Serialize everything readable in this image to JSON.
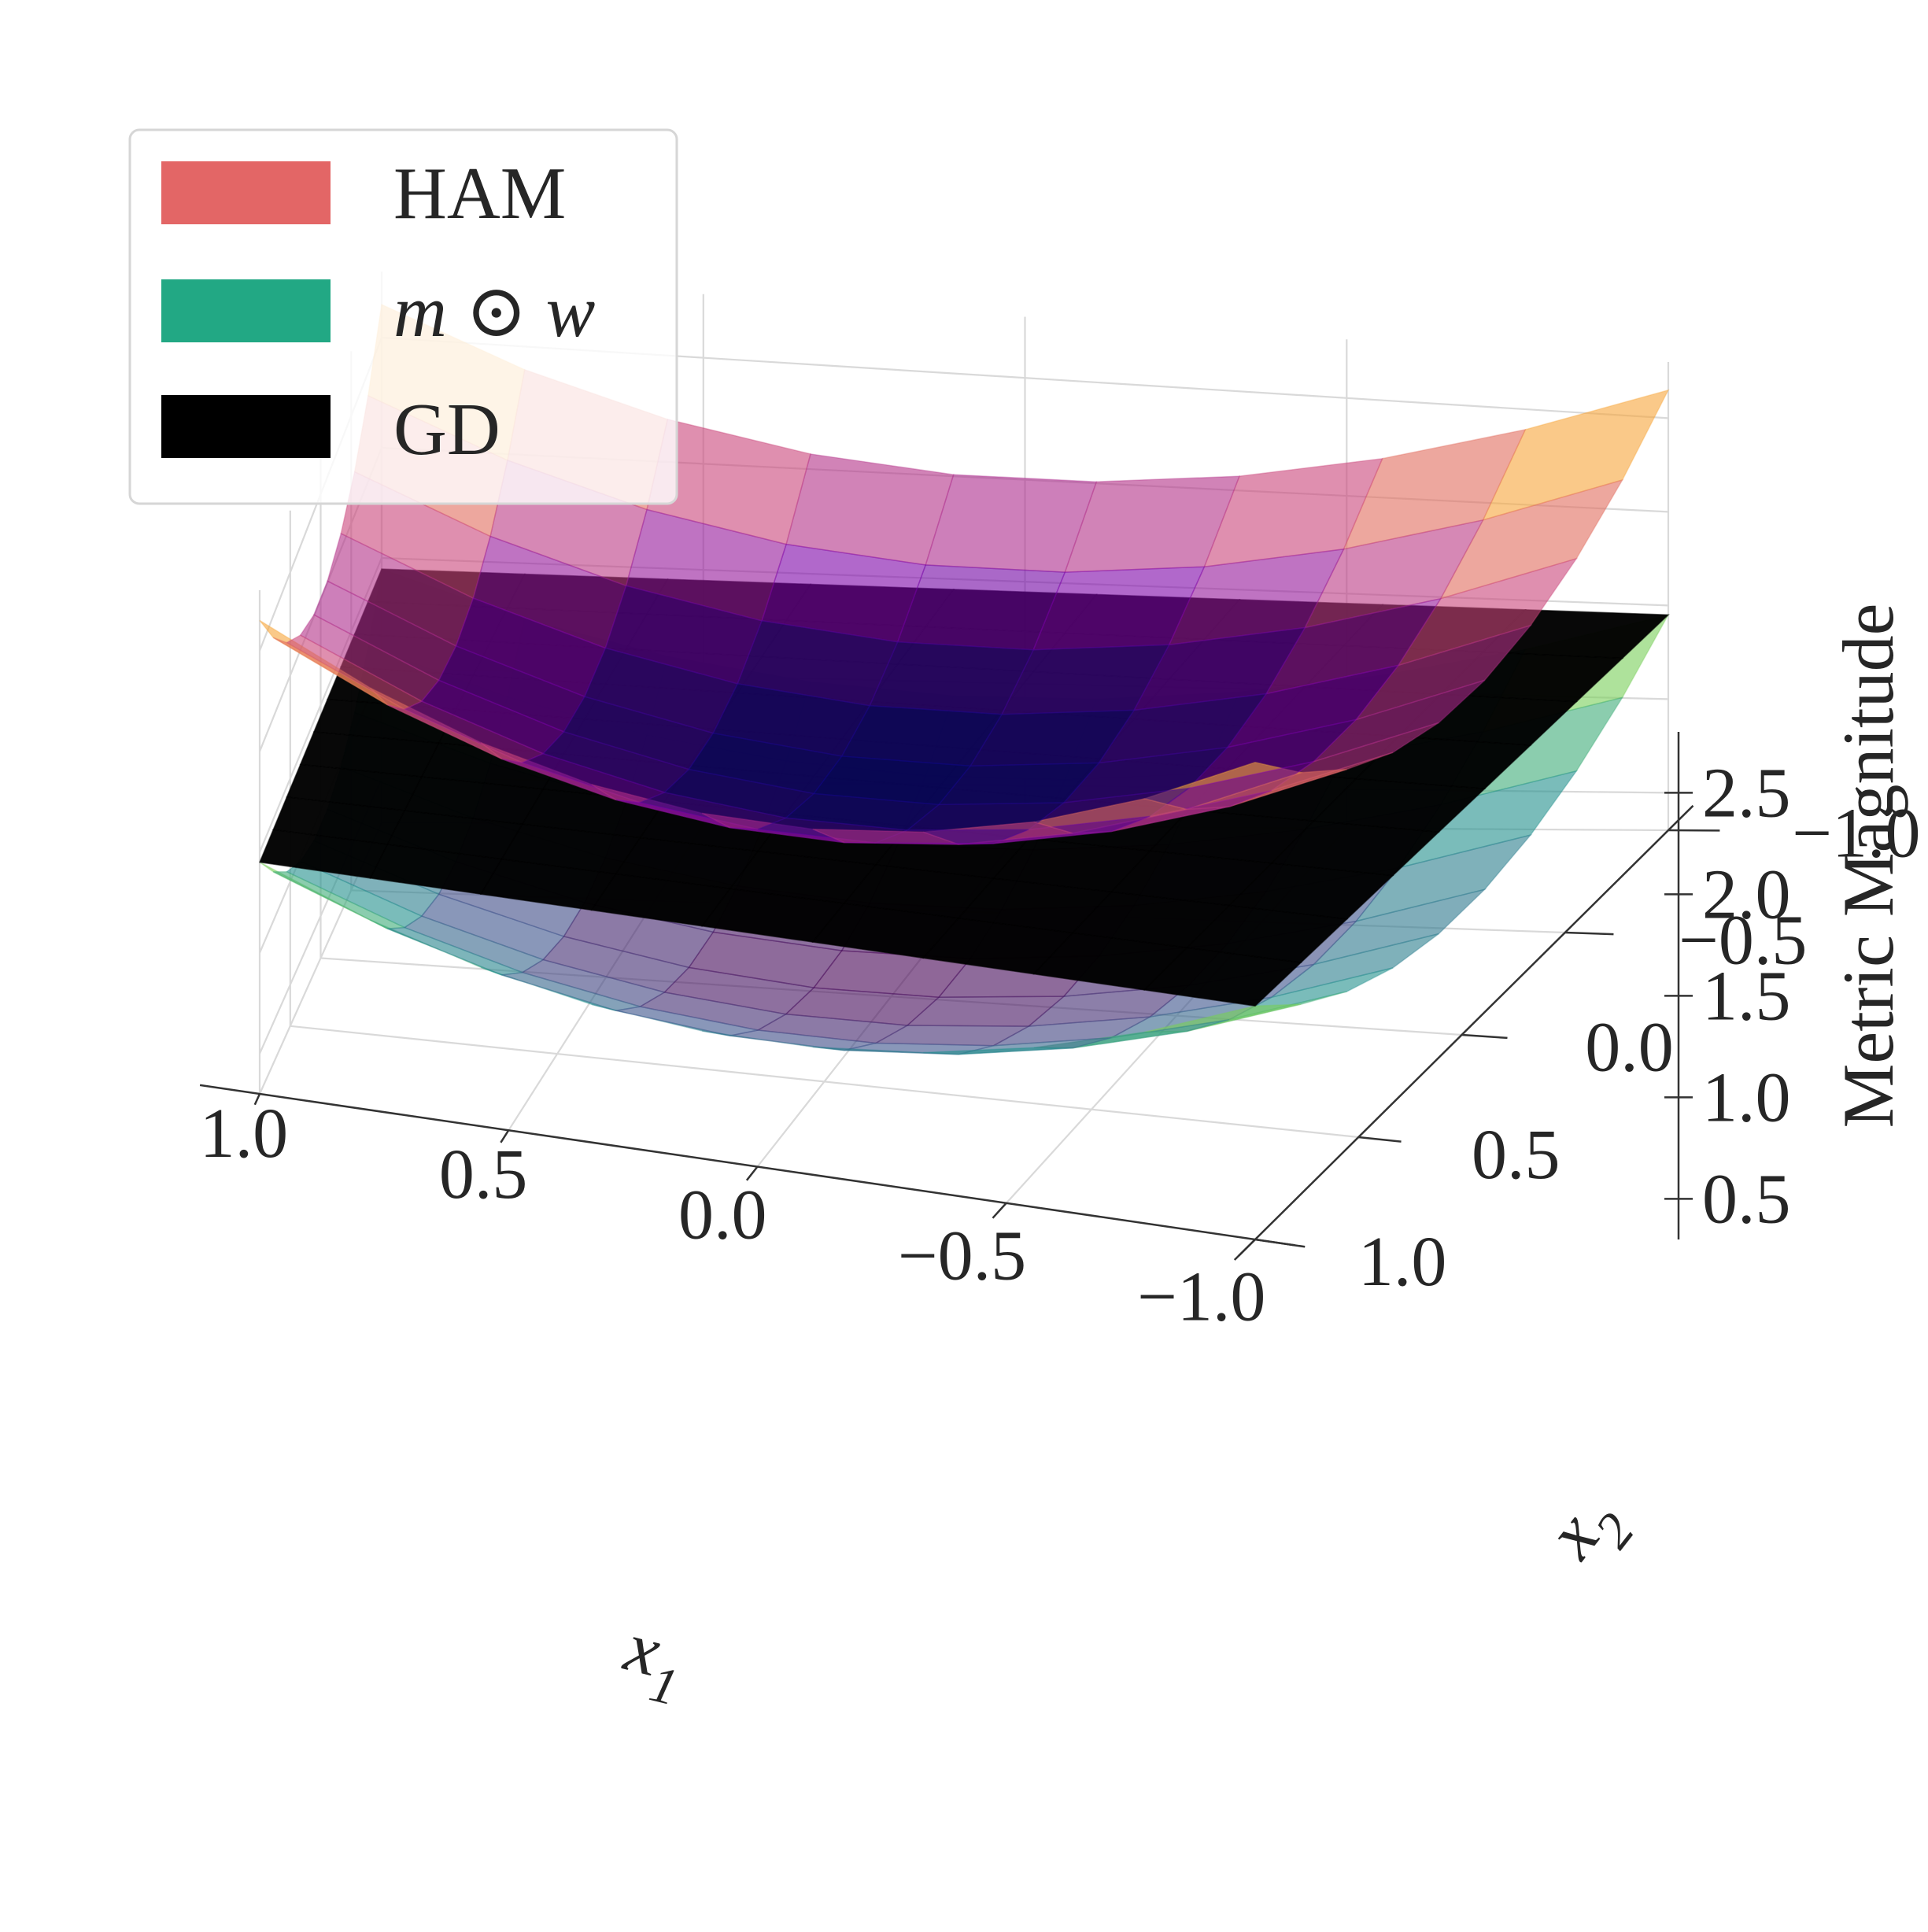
{
  "chart_data": {
    "type": "surface3d",
    "xlabel": "x",
    "xlabel_sub": "1",
    "ylabel": "x",
    "ylabel_sub": "2",
    "zlabel": "Metric Magnitude",
    "xlim": [
      -1.0,
      1.0
    ],
    "ylim": [
      -1.0,
      1.0
    ],
    "zlim": [
      0.3,
      2.8
    ],
    "x_ticks": [
      {
        "value": 1.0,
        "label": "1.0"
      },
      {
        "value": 0.5,
        "label": "0.5"
      },
      {
        "value": 0.0,
        "label": "0.0"
      },
      {
        "value": -0.5,
        "label": "−0.5"
      },
      {
        "value": -1.0,
        "label": "−1.0"
      }
    ],
    "y_ticks": [
      {
        "value": -1.0,
        "label": "−1.0"
      },
      {
        "value": -0.5,
        "label": "−0.5"
      },
      {
        "value": 0.0,
        "label": "0.0"
      },
      {
        "value": 0.5,
        "label": "0.5"
      },
      {
        "value": 1.0,
        "label": "1.0"
      }
    ],
    "z_ticks": [
      {
        "value": 0.5,
        "label": "0.5"
      },
      {
        "value": 1.0,
        "label": "1.0"
      },
      {
        "value": 1.5,
        "label": "1.5"
      },
      {
        "value": 2.0,
        "label": "2.0"
      },
      {
        "value": 2.5,
        "label": "2.5"
      }
    ],
    "grid": true,
    "legend_position": "top-left",
    "series": [
      {
        "name": "HAM",
        "legend_color": "#e36666",
        "colormap": "plasma",
        "formula": "z = 1.35 + 1.3 * (x^2 + y^2) / 2",
        "z_min": 1.35,
        "z_max": 2.65
      },
      {
        "name": "m ⊙ w",
        "legend_color": "#22a884",
        "colormap": "viridis",
        "formula": "z = 0.4 + 1.05 * (x^2 + y^2) / 2",
        "z_min": 0.4,
        "z_max": 1.45
      },
      {
        "name": "GD",
        "legend_color": "#000000",
        "colormap": "solid",
        "formula": "z = 1.45",
        "z_min": 1.45,
        "z_max": 1.45
      }
    ]
  }
}
